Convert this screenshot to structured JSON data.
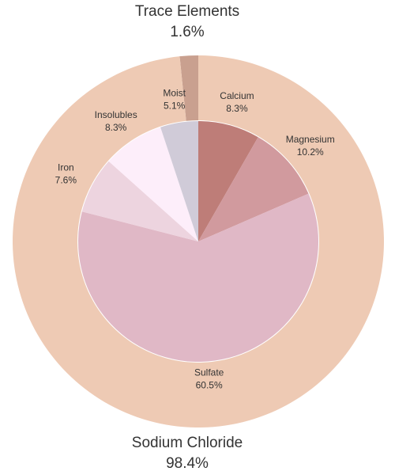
{
  "chart_data": {
    "type": "pie",
    "subtype": "nested-donut",
    "outer_ring": {
      "slices": [
        {
          "label": "Trace Elements",
          "value": 1.6,
          "value_label": "1.6%",
          "color": "#c9a08f"
        },
        {
          "label": "Sodium Chloride",
          "value": 98.4,
          "value_label": "98.4%",
          "color": "#eecab4"
        }
      ]
    },
    "inner_pie": {
      "slices": [
        {
          "label": "Calcium",
          "value": 8.3,
          "value_label": "8.3%",
          "color": "#be7d78"
        },
        {
          "label": "Magnesium",
          "value": 10.2,
          "value_label": "10.2%",
          "color": "#d19a9e"
        },
        {
          "label": "Sulfate",
          "value": 60.5,
          "value_label": "60.5%",
          "color": "#e0b8c6"
        },
        {
          "label": "Iron",
          "value": 7.6,
          "value_label": "7.6%",
          "color": "#edd4df"
        },
        {
          "label": "Insolubles",
          "value": 8.3,
          "value_label": "8.3%",
          "color": "#fdeefa"
        },
        {
          "label": "Moist",
          "value": 5.1,
          "value_label": "5.1%",
          "color": "#d0cbd8"
        }
      ]
    }
  }
}
